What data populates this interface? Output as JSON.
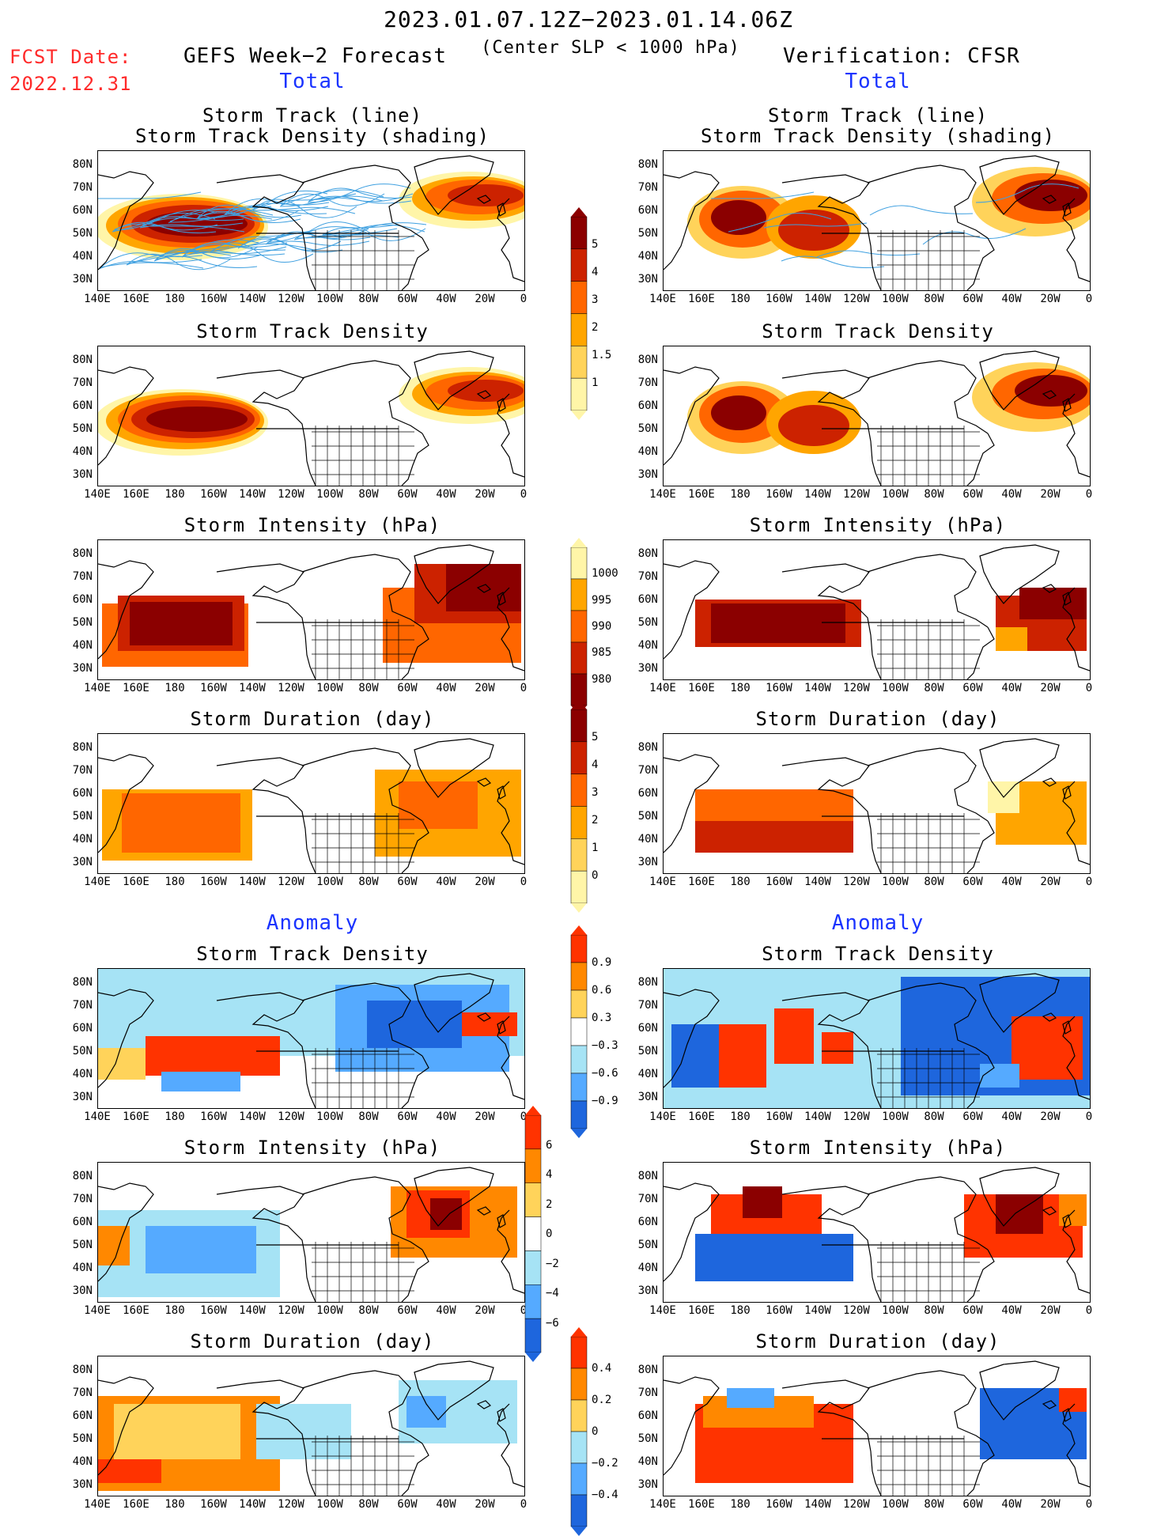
{
  "header": {
    "date_range": "2023.01.07.12Z−2023.01.14.06Z",
    "criterion": "(Center SLP < 1000 hPa)",
    "fcst_label": "FCST Date:",
    "fcst_date": "2022.12.31",
    "left_title": "GEFS Week−2 Forecast",
    "right_title": "Verification: CFSR"
  },
  "sections": {
    "total": "Total",
    "anomaly": "Anomaly"
  },
  "panel_titles": {
    "track_line": "Storm Track (line)",
    "track_shading": "Storm Track Density (shading)",
    "density": "Storm Track Density",
    "intensity": "Storm Intensity (hPa)",
    "duration": "Storm Duration (day)"
  },
  "axes": {
    "lat_labels": [
      "80N",
      "70N",
      "60N",
      "50N",
      "40N",
      "30N"
    ],
    "lon_labels": [
      "140E",
      "160E",
      "180",
      "160W",
      "140W",
      "120W",
      "100W",
      "80W",
      "60W",
      "40W",
      "20W",
      "0"
    ]
  },
  "colorbars": {
    "density_total": {
      "labels": [
        "5",
        "4",
        "3",
        "2",
        "1.5",
        "1"
      ],
      "colors": [
        "#8b0000",
        "#cc2200",
        "#ff6600",
        "#ffa500",
        "#ffd35a",
        "#fff5a8"
      ]
    },
    "intensity_total": {
      "labels": [
        "1000",
        "995",
        "990",
        "985",
        "980"
      ],
      "colors": [
        "#fff5a8",
        "#ffa500",
        "#ff6600",
        "#cc2200",
        "#8b0000"
      ]
    },
    "duration_total": {
      "labels": [
        "5",
        "4",
        "3",
        "2",
        "1",
        "0"
      ],
      "colors": [
        "#8b0000",
        "#cc2200",
        "#ff6600",
        "#ffa500",
        "#ffd35a",
        "#fff5a8"
      ]
    },
    "density_anom": {
      "labels": [
        "0.9",
        "0.6",
        "0.3",
        "−0.3",
        "−0.6",
        "−0.9"
      ],
      "colors": [
        "#ff3300",
        "#ff8800",
        "#ffd35a",
        "#ffffff",
        "#a6e3f5",
        "#55aaff",
        "#1e66dd"
      ]
    },
    "intensity_anom": {
      "labels": [
        "6",
        "4",
        "2",
        "0",
        "−2",
        "−4",
        "−6"
      ],
      "colors": [
        "#ff3300",
        "#ff8800",
        "#ffd35a",
        "#ffffff",
        "#a6e3f5",
        "#55aaff",
        "#1e66dd"
      ]
    },
    "duration_anom": {
      "labels": [
        "0.4",
        "0.2",
        "0",
        "−0.2",
        "−0.4"
      ],
      "colors": [
        "#ff3300",
        "#ff8800",
        "#ffd35a",
        "#a6e3f5",
        "#55aaff",
        "#1e66dd"
      ]
    }
  },
  "colors": {
    "title_red": "#ff2a2a",
    "section_blue": "#1a33ff",
    "track_line": "#3fa0e0"
  }
}
